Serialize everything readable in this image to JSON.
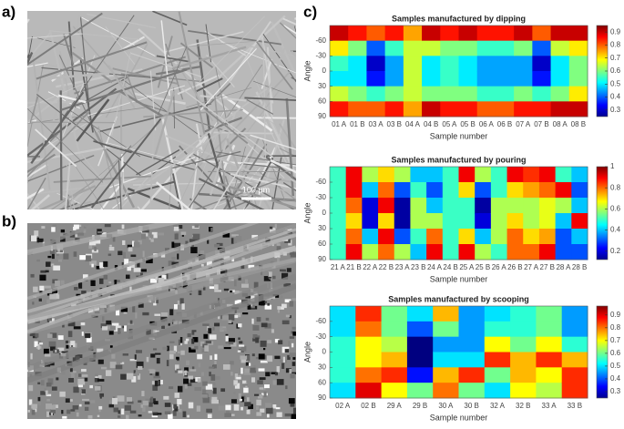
{
  "panels": [
    "a)",
    "b)",
    "c)"
  ],
  "scale_bar": "100 µm",
  "chart_data": [
    {
      "type": "heatmap",
      "title": "Samples manufactured by dipping",
      "xlabel": "Sample number",
      "ylabel": "Angle",
      "categories": [
        "01 A",
        "01 B",
        "03 A",
        "03 B",
        "04 A",
        "04 B",
        "05 A",
        "05 B",
        "06 A",
        "06 B",
        "07 A",
        "07 B",
        "08 A",
        "08 B"
      ],
      "y": [
        -75,
        -45,
        -15,
        15,
        45,
        75
      ],
      "ylim": [
        -90,
        90
      ],
      "yticks": [
        -60,
        -30,
        0,
        30,
        60,
        90
      ],
      "colormap": "jet",
      "clim": [
        0.25,
        0.95
      ],
      "cticks": [
        0.3,
        0.4,
        0.5,
        0.6,
        0.7,
        0.8,
        0.9
      ],
      "values": [
        [
          0.9,
          0.7,
          0.55,
          0.5,
          0.65,
          0.85
        ],
        [
          0.85,
          0.6,
          0.5,
          0.5,
          0.6,
          0.8
        ],
        [
          0.8,
          0.4,
          0.3,
          0.35,
          0.55,
          0.8
        ],
        [
          0.85,
          0.55,
          0.45,
          0.45,
          0.6,
          0.85
        ],
        [
          0.75,
          0.65,
          0.65,
          0.65,
          0.65,
          0.75
        ],
        [
          0.9,
          0.65,
          0.5,
          0.5,
          0.6,
          0.9
        ],
        [
          0.85,
          0.6,
          0.55,
          0.55,
          0.6,
          0.85
        ],
        [
          0.9,
          0.6,
          0.5,
          0.5,
          0.6,
          0.85
        ],
        [
          0.85,
          0.55,
          0.45,
          0.45,
          0.55,
          0.8
        ],
        [
          0.85,
          0.55,
          0.45,
          0.45,
          0.55,
          0.8
        ],
        [
          0.9,
          0.6,
          0.45,
          0.45,
          0.6,
          0.85
        ],
        [
          0.8,
          0.4,
          0.3,
          0.35,
          0.55,
          0.85
        ],
        [
          0.9,
          0.65,
          0.5,
          0.5,
          0.6,
          0.9
        ],
        [
          0.9,
          0.7,
          0.6,
          0.6,
          0.7,
          0.9
        ]
      ]
    },
    {
      "type": "heatmap",
      "title": "Samples manufactured by pouring",
      "xlabel": "Sample number",
      "ylabel": "Angle",
      "categories": [
        "21 A",
        "21 B",
        "22 A",
        "22 B",
        "23 A",
        "23 B",
        "24 A",
        "24 B",
        "25 A",
        "25 B",
        "26 A",
        "26 B",
        "27 A",
        "27 B",
        "28 A",
        "28 B"
      ],
      "y": [
        -75,
        -45,
        -15,
        15,
        45,
        75
      ],
      "ylim": [
        -90,
        90
      ],
      "yticks": [
        -60,
        -30,
        0,
        30,
        60,
        90
      ],
      "colormap": "jet",
      "clim": [
        0.12,
        1
      ],
      "cticks": [
        0.2,
        0.4,
        0.6,
        0.8,
        1
      ],
      "values": [
        [
          0.5,
          0.5,
          0.5,
          0.5,
          0.5,
          0.5
        ],
        [
          0.9,
          0.9,
          0.8,
          0.7,
          0.8,
          0.9
        ],
        [
          0.6,
          0.4,
          0.2,
          0.2,
          0.4,
          0.6
        ],
        [
          0.7,
          0.8,
          0.9,
          0.7,
          0.9,
          0.8
        ],
        [
          0.6,
          0.3,
          0.15,
          0.15,
          0.3,
          0.6
        ],
        [
          0.4,
          0.5,
          0.6,
          0.6,
          0.5,
          0.4
        ],
        [
          0.4,
          0.3,
          0.4,
          0.6,
          0.8,
          0.9
        ],
        [
          0.5,
          0.5,
          0.5,
          0.5,
          0.5,
          0.5
        ],
        [
          0.9,
          0.7,
          0.5,
          0.5,
          0.7,
          0.9
        ],
        [
          0.6,
          0.3,
          0.15,
          0.2,
          0.4,
          0.6
        ],
        [
          0.5,
          0.5,
          0.6,
          0.6,
          0.6,
          0.5
        ],
        [
          0.9,
          0.7,
          0.6,
          0.7,
          0.8,
          0.8
        ],
        [
          0.85,
          0.75,
          0.6,
          0.6,
          0.7,
          0.8
        ],
        [
          0.9,
          0.8,
          0.65,
          0.65,
          0.75,
          0.9
        ],
        [
          0.5,
          0.9,
          0.6,
          0.4,
          0.3,
          0.3
        ],
        [
          0.4,
          0.3,
          0.4,
          0.9,
          0.4,
          0.3
        ]
      ]
    },
    {
      "type": "heatmap",
      "title": "Samples manufactured by scooping",
      "xlabel": "Sample number",
      "ylabel": "Angle",
      "categories": [
        "02 A",
        "02 B",
        "29 A",
        "29 B",
        "30 A",
        "30 B",
        "32 A",
        "32 B",
        "33 A",
        "33 B"
      ],
      "y": [
        -75,
        -45,
        -15,
        15,
        45,
        75
      ],
      "ylim": [
        -90,
        90
      ],
      "yticks": [
        -60,
        -30,
        0,
        30,
        60,
        90
      ],
      "colormap": "jet",
      "clim": [
        0.25,
        0.97
      ],
      "cticks": [
        0.3,
        0.4,
        0.5,
        0.6,
        0.7,
        0.8,
        0.9
      ],
      "values": [
        [
          0.5,
          0.5,
          0.55,
          0.55,
          0.55,
          0.5
        ],
        [
          0.85,
          0.8,
          0.7,
          0.7,
          0.8,
          0.9
        ],
        [
          0.6,
          0.6,
          0.65,
          0.75,
          0.85,
          0.7
        ],
        [
          0.5,
          0.4,
          0.25,
          0.25,
          0.35,
          0.6
        ],
        [
          0.75,
          0.6,
          0.45,
          0.5,
          0.75,
          0.8
        ],
        [
          0.45,
          0.45,
          0.45,
          0.5,
          0.85,
          0.6
        ],
        [
          0.5,
          0.55,
          0.7,
          0.85,
          0.6,
          0.5
        ],
        [
          0.55,
          0.55,
          0.6,
          0.75,
          0.75,
          0.7
        ],
        [
          0.6,
          0.6,
          0.7,
          0.85,
          0.7,
          0.65
        ],
        [
          0.45,
          0.45,
          0.55,
          0.75,
          0.85,
          0.85
        ]
      ]
    }
  ]
}
